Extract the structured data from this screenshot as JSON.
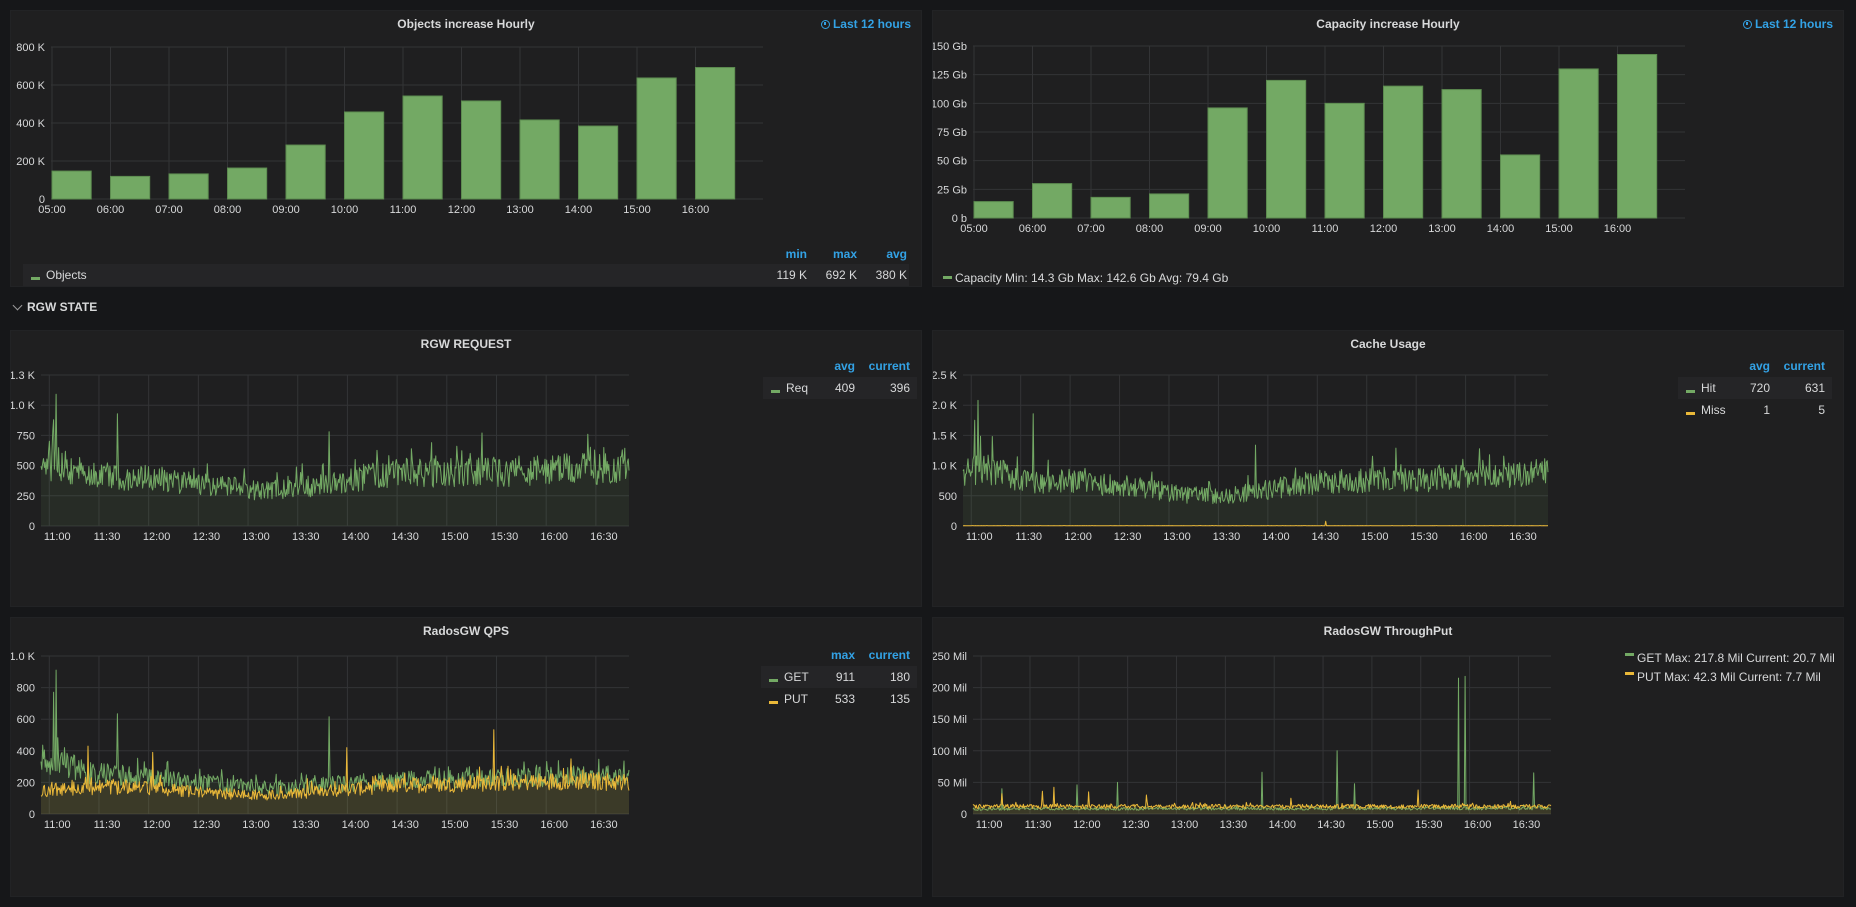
{
  "colors": {
    "green": "#73a964",
    "green_line": "#6fa55d",
    "yellow": "#eab839",
    "accent_blue": "#33a2e5",
    "grid": "#333436",
    "axis_text": "#d8d9da"
  },
  "row": {
    "title": "RGW STATE",
    "chevron_icon": "chevron-down-icon"
  },
  "panels": {
    "objects": {
      "title": "Objects increase Hourly",
      "time_range": "Last 12 hours",
      "legend_headers": [
        "min",
        "max",
        "avg"
      ],
      "legend": [
        {
          "name": "Objects",
          "min": "119 K",
          "max": "692 K",
          "avg": "380 K"
        }
      ]
    },
    "capacity": {
      "title": "Capacity increase Hourly",
      "time_range": "Last 12 hours",
      "legend_text": "Capacity Min: 14.3 Gb Max: 142.6 Gb Avg: 79.4 Gb"
    },
    "rgw_request": {
      "title": "RGW REQUEST",
      "legend_headers": [
        "avg",
        "current"
      ],
      "legend": [
        {
          "name": "Req",
          "avg": "409",
          "current": "396"
        }
      ]
    },
    "cache_usage": {
      "title": "Cache Usage",
      "legend_headers": [
        "avg",
        "current"
      ],
      "legend": [
        {
          "name": "Hit",
          "avg": "720",
          "current": "631"
        },
        {
          "name": "Miss",
          "avg": "1",
          "current": "5"
        }
      ]
    },
    "radosgw_qps": {
      "title": "RadosGW QPS",
      "legend_headers": [
        "max",
        "current"
      ],
      "legend": [
        {
          "name": "GET",
          "max": "911",
          "current": "180"
        },
        {
          "name": "PUT",
          "max": "533",
          "current": "135"
        }
      ]
    },
    "radosgw_throughput": {
      "title": "RadosGW ThroughPut",
      "legend": [
        {
          "name": "GET",
          "text": "GET Max: 217.8 Mil Current: 20.7 Mil"
        },
        {
          "name": "PUT",
          "text": "PUT Max: 42.3 Mil Current: 7.7 Mil"
        }
      ]
    }
  },
  "chart_data": [
    {
      "id": "objects",
      "type": "bar",
      "title": "Objects increase Hourly",
      "categories": [
        "05:00",
        "06:00",
        "07:00",
        "08:00",
        "09:00",
        "10:00",
        "11:00",
        "12:00",
        "13:00",
        "14:00",
        "15:00",
        "16:00"
      ],
      "series": [
        {
          "name": "Objects",
          "color": "#73a964",
          "values": [
            147000,
            119000,
            132000,
            163000,
            284000,
            458000,
            542000,
            516000,
            416000,
            384000,
            637000,
            692000
          ]
        }
      ],
      "yticks": [
        "0",
        "200 K",
        "400 K",
        "600 K",
        "800 K"
      ],
      "ylim": [
        0,
        800000
      ],
      "grid": true,
      "legend": "bottom"
    },
    {
      "id": "capacity",
      "type": "bar",
      "title": "Capacity increase Hourly",
      "categories": [
        "05:00",
        "06:00",
        "07:00",
        "08:00",
        "09:00",
        "10:00",
        "11:00",
        "12:00",
        "13:00",
        "14:00",
        "15:00",
        "16:00"
      ],
      "series": [
        {
          "name": "Capacity",
          "color": "#73a964",
          "values": [
            14.3,
            30,
            18,
            21,
            96,
            120,
            100,
            115,
            112,
            55,
            130,
            142.6
          ]
        }
      ],
      "yticks": [
        "0 b",
        "25 Gb",
        "50 Gb",
        "75 Gb",
        "100 Gb",
        "125 Gb",
        "150 Gb"
      ],
      "ylim": [
        0,
        150
      ],
      "unit": "Gb",
      "grid": true,
      "legend": "bottom"
    },
    {
      "id": "rgw_request",
      "type": "area",
      "title": "RGW REQUEST",
      "xticks": [
        "11:00",
        "11:30",
        "12:00",
        "12:30",
        "13:00",
        "13:30",
        "14:00",
        "14:30",
        "15:00",
        "15:30",
        "16:00",
        "16:30"
      ],
      "x_range": [
        "10:55",
        "16:50"
      ],
      "yticks": [
        "0",
        "250",
        "500",
        "750",
        "1.0 K",
        "1.3 K"
      ],
      "ylim": [
        0,
        1250
      ],
      "series": [
        {
          "name": "Req",
          "color": "#73a964",
          "avg": 409,
          "current": 396,
          "max_approx": 1090,
          "profile": [
            [
              0,
              470
            ],
            [
              0.03,
              520
            ],
            [
              0.05,
              470
            ],
            [
              0.1,
              420
            ],
            [
              0.2,
              390
            ],
            [
              0.3,
              330
            ],
            [
              0.38,
              290
            ],
            [
              0.45,
              320
            ],
            [
              0.52,
              380
            ],
            [
              0.6,
              440
            ],
            [
              0.7,
              440
            ],
            [
              0.8,
              450
            ],
            [
              0.9,
              470
            ],
            [
              1.0,
              480
            ]
          ],
          "spikes": [
            [
              0.022,
              880
            ],
            [
              0.026,
              1090
            ],
            [
              0.13,
              930
            ],
            [
              0.49,
              780
            ],
            [
              0.75,
              770
            ],
            [
              0.93,
              760
            ]
          ]
        }
      ],
      "legend": "right"
    },
    {
      "id": "cache_usage",
      "type": "area",
      "title": "Cache Usage",
      "xticks": [
        "11:00",
        "11:30",
        "12:00",
        "12:30",
        "13:00",
        "13:30",
        "14:00",
        "14:30",
        "15:00",
        "15:30",
        "16:00",
        "16:30"
      ],
      "x_range": [
        "10:55",
        "16:50"
      ],
      "yticks": [
        "0",
        "500",
        "1.0 K",
        "1.5 K",
        "2.0 K",
        "2.5 K"
      ],
      "ylim": [
        0,
        2500
      ],
      "series": [
        {
          "name": "Hit",
          "color": "#73a964",
          "avg": 720,
          "current": 631,
          "max_approx": 2080,
          "profile": [
            [
              0,
              900
            ],
            [
              0.04,
              950
            ],
            [
              0.1,
              760
            ],
            [
              0.2,
              720
            ],
            [
              0.3,
              640
            ],
            [
              0.38,
              520
            ],
            [
              0.45,
              500
            ],
            [
              0.52,
              600
            ],
            [
              0.6,
              720
            ],
            [
              0.7,
              760
            ],
            [
              0.8,
              780
            ],
            [
              0.9,
              820
            ],
            [
              1.0,
              880
            ]
          ],
          "spikes": [
            [
              0.02,
              1750
            ],
            [
              0.026,
              2080
            ],
            [
              0.12,
              1860
            ],
            [
              0.5,
              1340
            ],
            [
              0.74,
              1290
            ],
            [
              0.9,
              1180
            ]
          ]
        },
        {
          "name": "Miss",
          "color": "#eab839",
          "avg": 1,
          "current": 5,
          "max_approx": 80,
          "profile": [
            [
              0,
              5
            ],
            [
              1,
              5
            ]
          ],
          "spikes": [
            [
              0.62,
              80
            ]
          ]
        }
      ],
      "legend": "right"
    },
    {
      "id": "radosgw_qps",
      "type": "area",
      "title": "RadosGW QPS",
      "xticks": [
        "11:00",
        "11:30",
        "12:00",
        "12:30",
        "13:00",
        "13:30",
        "14:00",
        "14:30",
        "15:00",
        "15:30",
        "16:00",
        "16:30"
      ],
      "x_range": [
        "10:55",
        "16:50"
      ],
      "yticks": [
        "0",
        "200",
        "400",
        "600",
        "800",
        "1.0 K"
      ],
      "ylim": [
        0,
        1000
      ],
      "series": [
        {
          "name": "GET",
          "color": "#73a964",
          "max": 911,
          "current": 180,
          "profile": [
            [
              0,
              340
            ],
            [
              0.04,
              330
            ],
            [
              0.07,
              260
            ],
            [
              0.2,
              230
            ],
            [
              0.3,
              190
            ],
            [
              0.4,
              160
            ],
            [
              0.5,
              190
            ],
            [
              0.6,
              210
            ],
            [
              0.7,
              220
            ],
            [
              0.8,
              230
            ],
            [
              0.9,
              240
            ],
            [
              1.0,
              250
            ]
          ],
          "spikes": [
            [
              0.022,
              770
            ],
            [
              0.026,
              911
            ],
            [
              0.13,
              635
            ],
            [
              0.49,
              615
            ]
          ]
        },
        {
          "name": "PUT",
          "color": "#eab839",
          "max": 533,
          "current": 135,
          "profile": [
            [
              0,
              150
            ],
            [
              0.1,
              170
            ],
            [
              0.2,
              160
            ],
            [
              0.3,
              130
            ],
            [
              0.4,
              120
            ],
            [
              0.5,
              150
            ],
            [
              0.6,
              180
            ],
            [
              0.7,
              190
            ],
            [
              0.8,
              200
            ],
            [
              0.9,
              210
            ],
            [
              1.0,
              200
            ]
          ],
          "spikes": [
            [
              0.08,
              430
            ],
            [
              0.19,
              390
            ],
            [
              0.52,
              420
            ],
            [
              0.77,
              533
            ]
          ]
        }
      ],
      "legend": "right"
    },
    {
      "id": "radosgw_throughput",
      "type": "area",
      "title": "RadosGW ThroughPut",
      "xticks": [
        "11:00",
        "11:30",
        "12:00",
        "12:30",
        "13:00",
        "13:30",
        "14:00",
        "14:30",
        "15:00",
        "15:30",
        "16:00",
        "16:30"
      ],
      "x_range": [
        "10:55",
        "16:50"
      ],
      "yticks": [
        "0",
        "50 Mil",
        "100 Mil",
        "150 Mil",
        "200 Mil",
        "250 Mil"
      ],
      "ylim": [
        0,
        250
      ],
      "unit": "Mil",
      "series": [
        {
          "name": "GET",
          "color": "#73a964",
          "max": 217.8,
          "current": 20.7,
          "profile": [
            [
              0,
              8
            ],
            [
              1,
              9
            ]
          ],
          "spikes": [
            [
              0.05,
              40
            ],
            [
              0.18,
              46
            ],
            [
              0.25,
              50
            ],
            [
              0.5,
              66
            ],
            [
              0.63,
              100
            ],
            [
              0.66,
              48
            ],
            [
              0.84,
              215
            ],
            [
              0.852,
              217.8
            ],
            [
              0.97,
              65
            ]
          ]
        },
        {
          "name": "PUT",
          "color": "#eab839",
          "max": 42.3,
          "current": 7.7,
          "profile": [
            [
              0,
              12
            ],
            [
              1,
              12
            ]
          ],
          "spikes": [
            [
              0.05,
              32
            ],
            [
              0.12,
              36
            ],
            [
              0.14,
              42.3
            ],
            [
              0.2,
              35
            ],
            [
              0.3,
              30
            ],
            [
              0.55,
              25
            ],
            [
              0.77,
              38
            ]
          ]
        }
      ],
      "legend": "right"
    }
  ]
}
